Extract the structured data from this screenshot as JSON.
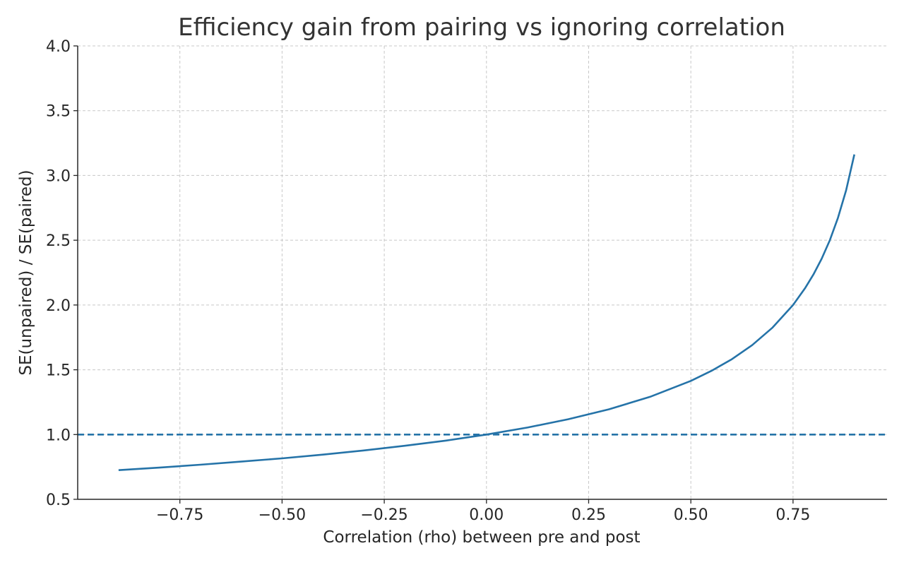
{
  "chart_data": {
    "type": "line",
    "title": "Efficiency gain from pairing vs ignoring correlation",
    "xlabel": "Correlation (rho) between pre and post",
    "ylabel": "SE(unpaired) / SE(paired)",
    "xlim": [
      -1.0,
      0.98
    ],
    "ylim": [
      0.5,
      4.0
    ],
    "xticks": [
      -0.75,
      -0.5,
      -0.25,
      0.0,
      0.25,
      0.5,
      0.75
    ],
    "xtick_labels": [
      "−0.75",
      "−0.50",
      "−0.25",
      "0.00",
      "0.25",
      "0.50",
      "0.75"
    ],
    "yticks": [
      0.5,
      1.0,
      1.5,
      2.0,
      2.5,
      3.0,
      3.5,
      4.0
    ],
    "ytick_labels": [
      "0.5",
      "1.0",
      "1.5",
      "2.0",
      "2.5",
      "3.0",
      "3.5",
      "4.0"
    ],
    "grid": true,
    "series": [
      {
        "color": "#2573a8",
        "style": "solid",
        "x": [
          -0.9,
          -0.8,
          -0.7,
          -0.6,
          -0.5,
          -0.4,
          -0.3,
          -0.2,
          -0.1,
          0.0,
          0.1,
          0.2,
          0.3,
          0.4,
          0.5,
          0.55,
          0.6,
          0.65,
          0.7,
          0.75,
          0.78,
          0.8,
          0.82,
          0.84,
          0.86,
          0.88,
          0.9
        ],
        "y": [
          0.725,
          0.745,
          0.767,
          0.791,
          0.816,
          0.845,
          0.877,
          0.913,
          0.953,
          1.0,
          1.054,
          1.118,
          1.195,
          1.291,
          1.414,
          1.491,
          1.581,
          1.69,
          1.826,
          2.0,
          2.132,
          2.236,
          2.357,
          2.5,
          2.673,
          2.887,
          3.162
        ]
      },
      {
        "color": "#2573a8",
        "style": "dashed",
        "x": [
          -1.0,
          0.98
        ],
        "y": [
          1.0,
          1.0
        ]
      }
    ]
  }
}
